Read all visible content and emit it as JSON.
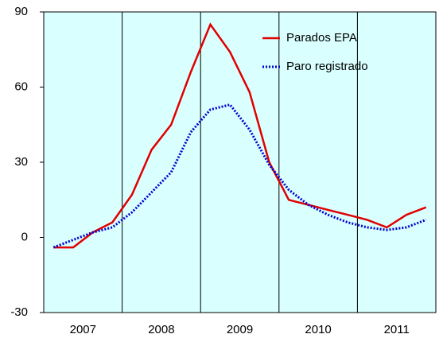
{
  "chart_data": {
    "type": "line",
    "x": [
      "2007",
      null,
      null,
      null,
      "2008",
      null,
      null,
      null,
      "2009",
      null,
      null,
      null,
      "2010",
      null,
      null,
      null,
      "2011",
      null,
      null,
      null
    ],
    "year_labels": [
      "2007",
      "2008",
      "2009",
      "2010",
      "2011"
    ],
    "series": [
      {
        "name": "Parados EPA",
        "color": "#e00000",
        "style": "solid",
        "values": [
          -4,
          -4,
          2,
          6,
          17,
          35,
          45,
          66,
          85,
          74,
          58,
          30,
          15,
          13,
          11,
          9,
          7,
          4,
          9,
          12
        ]
      },
      {
        "name": "Paro registrado",
        "color": "#0000cc",
        "style": "dotted",
        "values": [
          -4,
          -1,
          2,
          4,
          10,
          18,
          26,
          42,
          51,
          53,
          43,
          29,
          19,
          13,
          9,
          6,
          4,
          3,
          4,
          7
        ]
      }
    ],
    "ylim": [
      -30,
      90
    ],
    "yticks": [
      -30,
      0,
      30,
      60,
      90
    ],
    "background": "#d9ffff",
    "legend": "upper right"
  }
}
